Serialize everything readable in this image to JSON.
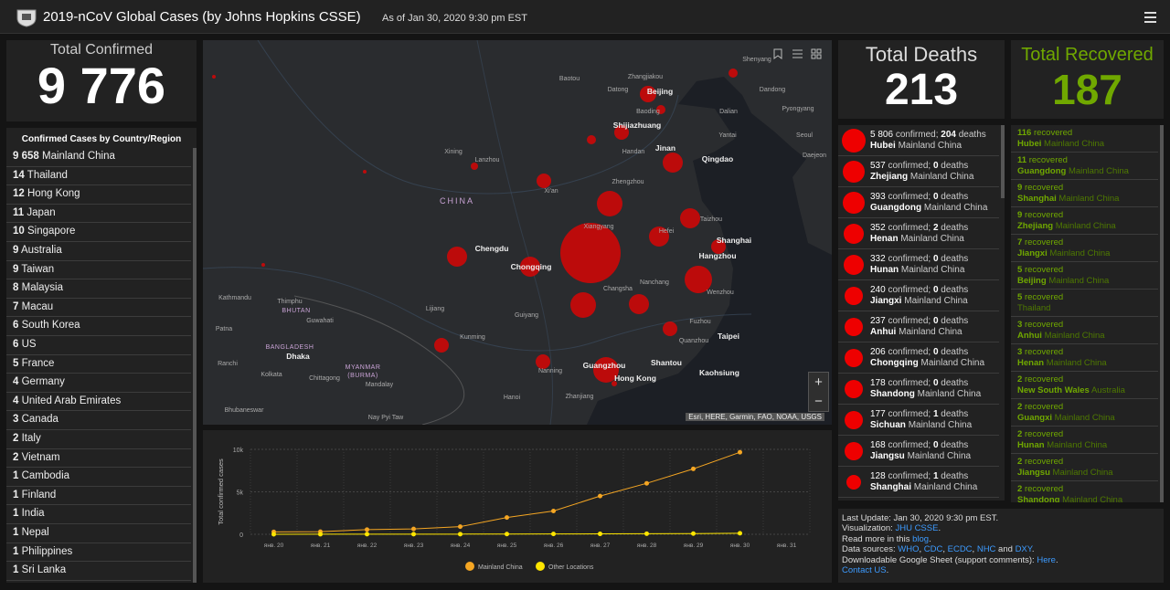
{
  "header": {
    "title": "2019-nCoV Global Cases (by Johns Hopkins CSSE)",
    "asof": "As of Jan 30, 2020 9:30 pm EST"
  },
  "confirmed": {
    "label": "Total Confirmed",
    "value": "9 776"
  },
  "country_list": {
    "title": "Confirmed Cases by Country/Region",
    "rows": [
      {
        "count": "9 658",
        "name": "Mainland China"
      },
      {
        "count": "14",
        "name": "Thailand"
      },
      {
        "count": "12",
        "name": "Hong Kong"
      },
      {
        "count": "11",
        "name": "Japan"
      },
      {
        "count": "10",
        "name": "Singapore"
      },
      {
        "count": "9",
        "name": "Australia"
      },
      {
        "count": "9",
        "name": "Taiwan"
      },
      {
        "count": "8",
        "name": "Malaysia"
      },
      {
        "count": "7",
        "name": "Macau"
      },
      {
        "count": "6",
        "name": "South Korea"
      },
      {
        "count": "6",
        "name": "US"
      },
      {
        "count": "5",
        "name": "France"
      },
      {
        "count": "4",
        "name": "Germany"
      },
      {
        "count": "4",
        "name": "United Arab Emirates"
      },
      {
        "count": "3",
        "name": "Canada"
      },
      {
        "count": "2",
        "name": "Italy"
      },
      {
        "count": "2",
        "name": "Vietnam"
      },
      {
        "count": "1",
        "name": "Cambodia"
      },
      {
        "count": "1",
        "name": "Finland"
      },
      {
        "count": "1",
        "name": "India"
      },
      {
        "count": "1",
        "name": "Nepal"
      },
      {
        "count": "1",
        "name": "Philippines"
      },
      {
        "count": "1",
        "name": "Sri Lanka"
      }
    ]
  },
  "deaths": {
    "label": "Total Deaths",
    "value": "213"
  },
  "recovered": {
    "label": "Total Recovered",
    "value": "187"
  },
  "deaths_list": {
    "confirmed_word": "confirmed;",
    "deaths_word": "deaths",
    "rows": [
      {
        "confirmed": "5 806",
        "deaths": "204",
        "region": "Hubei",
        "country": "Mainland China"
      },
      {
        "confirmed": "537",
        "deaths": "0",
        "region": "Zhejiang",
        "country": "Mainland China"
      },
      {
        "confirmed": "393",
        "deaths": "0",
        "region": "Guangdong",
        "country": "Mainland China"
      },
      {
        "confirmed": "352",
        "deaths": "2",
        "region": "Henan",
        "country": "Mainland China"
      },
      {
        "confirmed": "332",
        "deaths": "0",
        "region": "Hunan",
        "country": "Mainland China"
      },
      {
        "confirmed": "240",
        "deaths": "0",
        "region": "Jiangxi",
        "country": "Mainland China"
      },
      {
        "confirmed": "237",
        "deaths": "0",
        "region": "Anhui",
        "country": "Mainland China"
      },
      {
        "confirmed": "206",
        "deaths": "0",
        "region": "Chongqing",
        "country": "Mainland China"
      },
      {
        "confirmed": "178",
        "deaths": "0",
        "region": "Shandong",
        "country": "Mainland China"
      },
      {
        "confirmed": "177",
        "deaths": "1",
        "region": "Sichuan",
        "country": "Mainland China"
      },
      {
        "confirmed": "168",
        "deaths": "0",
        "region": "Jiangsu",
        "country": "Mainland China"
      },
      {
        "confirmed": "128",
        "deaths": "1",
        "region": "Shanghai",
        "country": "Mainland China"
      }
    ]
  },
  "recovered_list": {
    "word": "recovered",
    "rows": [
      {
        "count": "116",
        "region": "Hubei",
        "country": "Mainland China"
      },
      {
        "count": "11",
        "region": "Guangdong",
        "country": "Mainland China"
      },
      {
        "count": "9",
        "region": "Shanghai",
        "country": "Mainland China"
      },
      {
        "count": "9",
        "region": "Zhejiang",
        "country": "Mainland China"
      },
      {
        "count": "7",
        "region": "Jiangxi",
        "country": "Mainland China"
      },
      {
        "count": "5",
        "region": "Beijing",
        "country": "Mainland China"
      },
      {
        "count": "5",
        "country": "Thailand"
      },
      {
        "count": "3",
        "region": "Anhui",
        "country": "Mainland China"
      },
      {
        "count": "3",
        "region": "Henan",
        "country": "Mainland China"
      },
      {
        "count": "2",
        "region": "New South Wales",
        "country": "Australia"
      },
      {
        "count": "2",
        "region": "Guangxi",
        "country": "Mainland China"
      },
      {
        "count": "2",
        "region": "Hunan",
        "country": "Mainland China"
      },
      {
        "count": "2",
        "region": "Jiangsu",
        "country": "Mainland China"
      },
      {
        "count": "2",
        "region": "Shandong",
        "country": "Mainland China"
      }
    ]
  },
  "footer": {
    "lines": [
      [
        {
          "text": "Last Update: Jan 30, 2020 9:30 pm EST."
        }
      ],
      [
        {
          "text": "Visualization: "
        },
        {
          "text": "JHU CSSE",
          "link": true
        },
        {
          "text": "."
        }
      ],
      [
        {
          "text": "Read more in this "
        },
        {
          "text": "blog",
          "link": true
        },
        {
          "text": "."
        }
      ],
      [
        {
          "text": "Data sources: "
        },
        {
          "text": "WHO",
          "link": true
        },
        {
          "text": ", "
        },
        {
          "text": "CDC",
          "link": true
        },
        {
          "text": ", "
        },
        {
          "text": "ECDC",
          "link": true
        },
        {
          "text": ", "
        },
        {
          "text": "NHC",
          "link": true
        },
        {
          "text": " and "
        },
        {
          "text": "DXY",
          "link": true
        },
        {
          "text": "."
        }
      ],
      [
        {
          "text": "Downloadable Google Sheet (support comments): "
        },
        {
          "text": "Here",
          "link": true
        },
        {
          "text": "."
        }
      ],
      [
        {
          "text": "Contact US",
          "link": true
        },
        {
          "text": "."
        }
      ]
    ]
  },
  "map": {
    "cities": [
      "Shenyang",
      "Dandong",
      "Zhangjiakou",
      "Baotou",
      "Datong",
      "Beijing",
      "Baoding",
      "Dalian",
      "Pyongyang",
      "Yantai",
      "Shijiazhuang",
      "Seoul",
      "Daejeon",
      "Handan",
      "Jinan",
      "Qingdao",
      "Xining",
      "Lanzhou",
      "Xi'an",
      "Zhengzhou",
      "Xiangyang",
      "Hefei",
      "Taizhou",
      "Shanghai",
      "Chengdu",
      "Chongqing",
      "Hangzhou",
      "Wenzhou",
      "Changsha",
      "Nanchang",
      "Kathmandu",
      "Thimphu",
      "Guwahati",
      "Lijiang",
      "Guiyang",
      "Fuzhou",
      "Patna",
      "Kunming",
      "Quanzhou",
      "Taipei",
      "Dhaka",
      "Shantou",
      "Ranchi",
      "Nanning",
      "Guangzhou",
      "Hong Kong",
      "Kaohsiung",
      "Kolkata",
      "Chittagong",
      "Mandalay",
      "Hanoi",
      "Zhanjiang",
      "Bhubaneswar",
      "Nay Pyi Taw"
    ],
    "countries": [
      "CHINA",
      "BHUTAN",
      "BANGLADESH",
      "MYANMAR",
      "(BURMA)"
    ],
    "attribution": "Esri, HERE, Garmin, FAO, NOAA, USGS",
    "zoom_in": "+",
    "zoom_out": "−"
  },
  "chart_data": {
    "type": "line",
    "ylabel": "Total confirmed cases",
    "categories": [
      "янв. 20",
      "янв. 21",
      "янв. 22",
      "янв. 23",
      "янв. 24",
      "янв. 25",
      "янв. 26",
      "янв. 27",
      "янв. 28",
      "янв. 29",
      "янв. 30",
      "янв. 31"
    ],
    "series": [
      {
        "name": "Mainland China",
        "color": "#f5a623",
        "values": [
          278,
          310,
          550,
          630,
          900,
          1980,
          2740,
          4500,
          6000,
          7700,
          9658,
          null
        ]
      },
      {
        "name": "Other Locations",
        "color": "#ffe600",
        "values": [
          4,
          7,
          11,
          14,
          20,
          27,
          37,
          48,
          68,
          83,
          118,
          null
        ]
      }
    ],
    "ylim": [
      0,
      10000
    ],
    "yticks": [
      0,
      {
        "value": 5000,
        "label": "5k"
      },
      {
        "value": 10000,
        "label": "10k"
      }
    ],
    "grid": true,
    "legend": "bottom"
  }
}
